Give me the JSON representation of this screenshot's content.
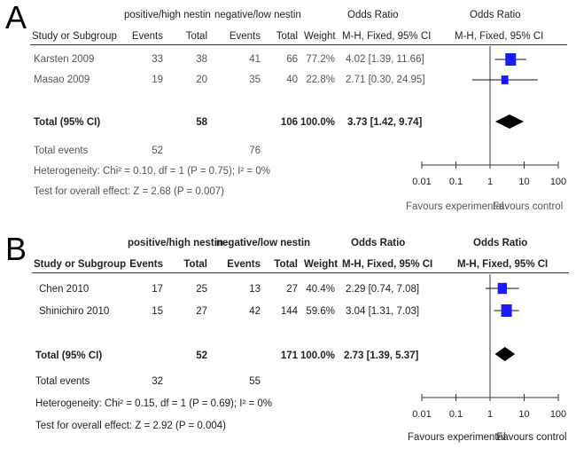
{
  "panels": [
    {
      "letter": "A",
      "header": {
        "group1": "positive/high nestin",
        "group2": "negative/low nestin",
        "col_effect": "Odds Ratio",
        "col_plot": "Odds Ratio",
        "study_label": "Study or Subgroup",
        "events1": "Events",
        "total1": "Total",
        "events2": "Events",
        "total2": "Total",
        "weight": "Weight",
        "method": "M-H, Fixed, 95% CI",
        "method_plot": "M-H, Fixed, 95% CI"
      },
      "studies": [
        {
          "name": "Karsten 2009",
          "events1": "33",
          "total1": "38",
          "events2": "41",
          "total2": "66",
          "weight": "77.2%",
          "ci": "4.02 [1.39, 11.66]"
        },
        {
          "name": "Masao 2009",
          "events1": "19",
          "total1": "20",
          "events2": "35",
          "total2": "40",
          "weight": "22.8%",
          "ci": "2.71 [0.30, 24.95]"
        }
      ],
      "total": {
        "label": "Total (95% CI)",
        "total1": "58",
        "total2": "106",
        "weight": "100.0%",
        "ci": "3.73 [1.42, 9.74]"
      },
      "total_events": {
        "label": "Total events",
        "events1": "52",
        "events2": "76"
      },
      "heterogeneity": "Heterogeneity: Chi² = 0.10, df = 1 (P = 0.75); I² = 0%",
      "overall": "Test for overall effect: Z = 2.68 (P = 0.007)",
      "axis": {
        "ticks": [
          "0.01",
          "0.1",
          "1",
          "10",
          "100"
        ]
      },
      "favours_left": "Favours experimental",
      "favours_right": "Favours control"
    },
    {
      "letter": "B",
      "header": {
        "group1": "positive/high nestin",
        "group2": "negative/low nestin",
        "col_effect": "Odds Ratio",
        "col_plot": "Odds Ratio",
        "study_label": "Study or Subgroup",
        "events1": "Events",
        "total1": "Total",
        "events2": "Events",
        "total2": "Total",
        "weight": "Weight",
        "method": "M-H, Fixed, 95% CI",
        "method_plot": "M-H, Fixed, 95% CI"
      },
      "studies": [
        {
          "name": "Chen 2010",
          "events1": "17",
          "total1": "25",
          "events2": "13",
          "total2": "27",
          "weight": "40.4%",
          "ci": "2.29 [0.74, 7.08]"
        },
        {
          "name": "Shinichiro 2010",
          "events1": "15",
          "total1": "27",
          "events2": "42",
          "total2": "144",
          "weight": "59.6%",
          "ci": "3.04 [1.31, 7.03]"
        }
      ],
      "total": {
        "label": "Total (95% CI)",
        "total1": "52",
        "total2": "171",
        "weight": "100.0%",
        "ci": "2.73 [1.39, 5.37]"
      },
      "total_events": {
        "label": "Total events",
        "events1": "32",
        "events2": "55"
      },
      "heterogeneity": "Heterogeneity: Chi² = 0.15, df = 1 (P = 0.69); I² = 0%",
      "overall": "Test for overall effect: Z = 2.92 (P = 0.004)",
      "axis": {
        "ticks": [
          "0.01",
          "0.1",
          "1",
          "10",
          "100"
        ]
      },
      "favours_left": "Favours experimental",
      "favours_right": "Favours control"
    }
  ],
  "chart_data": [
    {
      "type": "forest",
      "panel": "A",
      "scale": "log",
      "xlim": [
        0.01,
        100
      ],
      "reference_line": 1,
      "studies": [
        {
          "name": "Karsten 2009",
          "or": 4.02,
          "lower": 1.39,
          "upper": 11.66,
          "weight": 77.2
        },
        {
          "name": "Masao 2009",
          "or": 2.71,
          "lower": 0.3,
          "upper": 24.95,
          "weight": 22.8
        }
      ],
      "pooled": {
        "or": 3.73,
        "lower": 1.42,
        "upper": 9.74
      },
      "colors": {
        "study_marker": "#1a1aff",
        "pooled_marker": "#000000"
      }
    },
    {
      "type": "forest",
      "panel": "B",
      "scale": "log",
      "xlim": [
        0.01,
        100
      ],
      "reference_line": 1,
      "studies": [
        {
          "name": "Chen 2010",
          "or": 2.29,
          "lower": 0.74,
          "upper": 7.08,
          "weight": 40.4
        },
        {
          "name": "Shinichiro 2010",
          "or": 3.04,
          "lower": 1.31,
          "upper": 7.03,
          "weight": 59.6
        }
      ],
      "pooled": {
        "or": 2.73,
        "lower": 1.39,
        "upper": 5.37
      },
      "colors": {
        "study_marker": "#1a1aff",
        "pooled_marker": "#000000"
      }
    }
  ]
}
